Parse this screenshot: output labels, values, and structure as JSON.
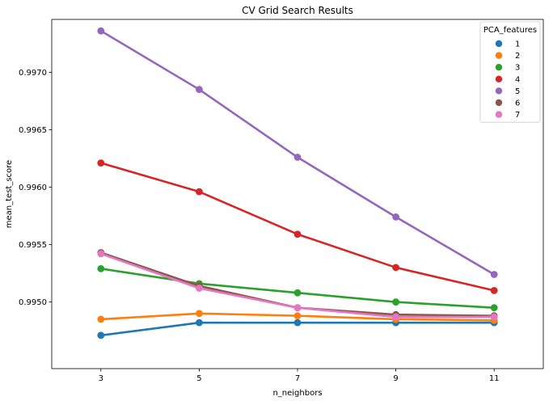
{
  "chart_data": {
    "type": "line",
    "title": "CV Grid Search Results",
    "xlabel": "n_neighbors",
    "ylabel": "mean_test_score",
    "categories": [
      "3",
      "5",
      "7",
      "9",
      "11"
    ],
    "ylim": [
      0.99442,
      0.99746
    ],
    "yticks": [
      "0.9950",
      "0.9955",
      "0.9960",
      "0.9965",
      "0.9970"
    ],
    "grid": false,
    "legend": {
      "title": "PCA_features",
      "placement": "upper-right"
    },
    "series": [
      {
        "name": "1",
        "color": "#1f77b4",
        "values": [
          0.99471,
          0.99482,
          0.99482,
          0.99482,
          0.99482
        ]
      },
      {
        "name": "2",
        "color": "#ff7f0e",
        "values": [
          0.99485,
          0.9949,
          0.99488,
          0.99485,
          0.99484
        ]
      },
      {
        "name": "3",
        "color": "#2ca02c",
        "values": [
          0.99529,
          0.99516,
          0.99508,
          0.995,
          0.99495
        ]
      },
      {
        "name": "4",
        "color": "#d62728",
        "values": [
          0.99621,
          0.99596,
          0.99559,
          0.9953,
          0.9951
        ]
      },
      {
        "name": "5",
        "color": "#9467bd",
        "values": [
          0.99736,
          0.99685,
          0.99626,
          0.99574,
          0.99524
        ]
      },
      {
        "name": "6",
        "color": "#8c564b",
        "values": [
          0.99543,
          0.99514,
          0.99495,
          0.99489,
          0.99488
        ]
      },
      {
        "name": "7",
        "color": "#e377c2",
        "values": [
          0.99542,
          0.99512,
          0.99495,
          0.99487,
          0.99487
        ]
      }
    ]
  }
}
